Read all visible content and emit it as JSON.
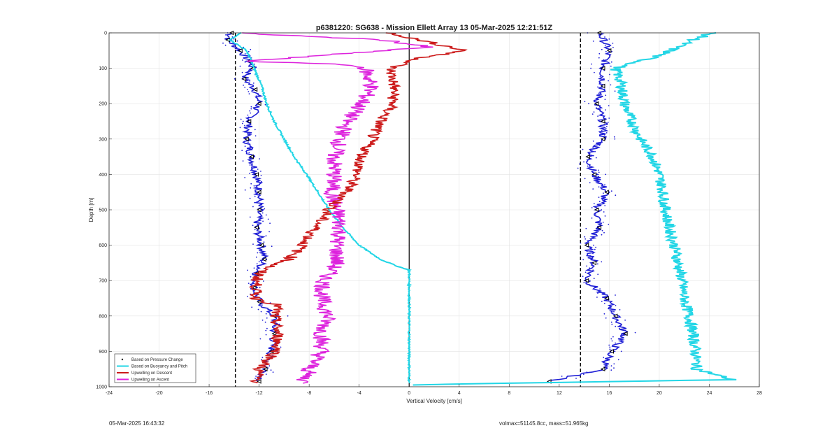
{
  "chart_data": {
    "type": "line",
    "title": "p6381220: SG638 - Mission Ellett Array 13 05-Mar-2025 12:21:51Z",
    "xlabel": "Vertical Velocity [cm/s]",
    "ylabel": "Depth [m]",
    "xlim": [
      -24,
      28
    ],
    "ylim": [
      1000,
      0
    ],
    "y_reversed": true,
    "grid": true,
    "x_ticks": [
      "-24",
      "-20",
      "-16",
      "-12",
      "-8",
      "-4",
      "0",
      "4",
      "8",
      "12",
      "16",
      "20",
      "24",
      "28"
    ],
    "y_ticks": [
      "0",
      "100",
      "200",
      "300",
      "400",
      "500",
      "600",
      "700",
      "800",
      "900",
      "1000"
    ],
    "legend_position": "bottom-left",
    "reference_lines": [
      {
        "style": "dashed",
        "x": -13.9
      },
      {
        "style": "dashed",
        "x": 13.7
      },
      {
        "style": "solid",
        "x": 0
      }
    ],
    "series": [
      {
        "name": "Based on Pressure Change",
        "color": "#000000",
        "style": "points",
        "descent": [
          [
            -14.2,
            0
          ],
          [
            -14.5,
            20
          ],
          [
            -13.5,
            50
          ],
          [
            -12.8,
            80
          ],
          [
            -12.5,
            100
          ],
          [
            -13.2,
            130
          ],
          [
            -12.3,
            160
          ],
          [
            -12.0,
            200
          ],
          [
            -12.8,
            250
          ],
          [
            -13.0,
            300
          ],
          [
            -12.6,
            350
          ],
          [
            -12.2,
            400
          ],
          [
            -12.0,
            450
          ],
          [
            -12.0,
            500
          ],
          [
            -12.2,
            550
          ],
          [
            -11.8,
            600
          ],
          [
            -11.6,
            640
          ],
          [
            -12.2,
            680
          ],
          [
            -12.4,
            720
          ],
          [
            -12.0,
            760
          ],
          [
            -10.8,
            800
          ],
          [
            -10.8,
            850
          ],
          [
            -11.0,
            900
          ],
          [
            -11.5,
            950
          ],
          [
            -12.0,
            985
          ]
        ],
        "ascent": [
          [
            15.2,
            0
          ],
          [
            16.0,
            50
          ],
          [
            15.5,
            100
          ],
          [
            15.5,
            150
          ],
          [
            15.0,
            200
          ],
          [
            15.5,
            250
          ],
          [
            15.5,
            300
          ],
          [
            14.3,
            350
          ],
          [
            14.8,
            400
          ],
          [
            15.8,
            450
          ],
          [
            15.0,
            500
          ],
          [
            15.2,
            550
          ],
          [
            14.2,
            600
          ],
          [
            14.8,
            650
          ],
          [
            14.2,
            700
          ],
          [
            15.8,
            750
          ],
          [
            16.5,
            800
          ],
          [
            17.3,
            850
          ],
          [
            16.2,
            900
          ],
          [
            15.5,
            950
          ],
          [
            11.2,
            985
          ]
        ]
      },
      {
        "name": "Based on Buoyancy and Pitch",
        "color": "#22d6e6",
        "style": "line",
        "descent": [
          [
            -13.5,
            0
          ],
          [
            -14.3,
            20
          ],
          [
            -13.0,
            50
          ],
          [
            -12.4,
            100
          ],
          [
            -11.8,
            150
          ],
          [
            -11.4,
            200
          ],
          [
            -10.8,
            250
          ],
          [
            -10.0,
            300
          ],
          [
            -9.2,
            350
          ],
          [
            -8.2,
            400
          ],
          [
            -7.3,
            450
          ],
          [
            -6.4,
            500
          ],
          [
            -5.3,
            550
          ],
          [
            -4.0,
            600
          ],
          [
            -2.3,
            640
          ],
          [
            -0.9,
            660
          ],
          [
            0,
            670
          ],
          [
            0,
            700
          ],
          [
            0,
            800
          ],
          [
            0,
            900
          ],
          [
            0,
            990
          ]
        ],
        "ascent": [
          [
            24.2,
            0
          ],
          [
            22.0,
            30
          ],
          [
            20.3,
            60
          ],
          [
            18.5,
            80
          ],
          [
            16.5,
            100
          ],
          [
            17.0,
            150
          ],
          [
            17.2,
            200
          ],
          [
            17.8,
            250
          ],
          [
            18.5,
            300
          ],
          [
            19.5,
            350
          ],
          [
            20.0,
            400
          ],
          [
            20.3,
            450
          ],
          [
            20.5,
            500
          ],
          [
            20.8,
            550
          ],
          [
            21.2,
            600
          ],
          [
            21.5,
            650
          ],
          [
            21.8,
            700
          ],
          [
            22.0,
            750
          ],
          [
            22.4,
            800
          ],
          [
            22.7,
            850
          ],
          [
            22.9,
            900
          ],
          [
            23.0,
            950
          ],
          [
            25.8,
            980
          ],
          [
            12.0,
            988
          ],
          [
            4.0,
            992
          ],
          [
            0.3,
            995
          ]
        ]
      },
      {
        "name": "Upwelling on Descent",
        "color": "#cc1a1a",
        "style": "line",
        "values": [
          [
            -1.5,
            0
          ],
          [
            0.8,
            20
          ],
          [
            4.5,
            50
          ],
          [
            1.0,
            70
          ],
          [
            -1.5,
            100
          ],
          [
            -1.2,
            150
          ],
          [
            -1.3,
            200
          ],
          [
            -2.3,
            250
          ],
          [
            -3.0,
            300
          ],
          [
            -3.8,
            350
          ],
          [
            -4.2,
            400
          ],
          [
            -5.0,
            450
          ],
          [
            -6.4,
            500
          ],
          [
            -7.5,
            550
          ],
          [
            -8.5,
            600
          ],
          [
            -9.6,
            640
          ],
          [
            -11.8,
            670
          ],
          [
            -12.2,
            700
          ],
          [
            -12.3,
            750
          ],
          [
            -10.5,
            770
          ],
          [
            -10.8,
            800
          ],
          [
            -10.5,
            850
          ],
          [
            -10.6,
            900
          ],
          [
            -12.0,
            950
          ],
          [
            -12.2,
            990
          ]
        ]
      },
      {
        "name": "Upwelling on Ascent",
        "color": "#dd22dd",
        "style": "line",
        "values": [
          [
            -14.0,
            0
          ],
          [
            -2.0,
            20
          ],
          [
            1.5,
            40
          ],
          [
            -13.0,
            80
          ],
          [
            -5.0,
            90
          ],
          [
            -3.5,
            100
          ],
          [
            -3.0,
            150
          ],
          [
            -3.8,
            200
          ],
          [
            -5.0,
            250
          ],
          [
            -5.5,
            300
          ],
          [
            -6.0,
            350
          ],
          [
            -6.0,
            400
          ],
          [
            -6.2,
            450
          ],
          [
            -5.8,
            500
          ],
          [
            -5.5,
            550
          ],
          [
            -5.8,
            600
          ],
          [
            -5.8,
            650
          ],
          [
            -6.8,
            700
          ],
          [
            -7.0,
            750
          ],
          [
            -6.5,
            800
          ],
          [
            -7.0,
            850
          ],
          [
            -7.0,
            900
          ],
          [
            -8.0,
            950
          ],
          [
            -8.5,
            990
          ]
        ]
      }
    ]
  },
  "footer": {
    "timestamp": "05-Mar-2025 16:43:32",
    "params": "volmax=51145.8cc, mass=51.965kg"
  }
}
